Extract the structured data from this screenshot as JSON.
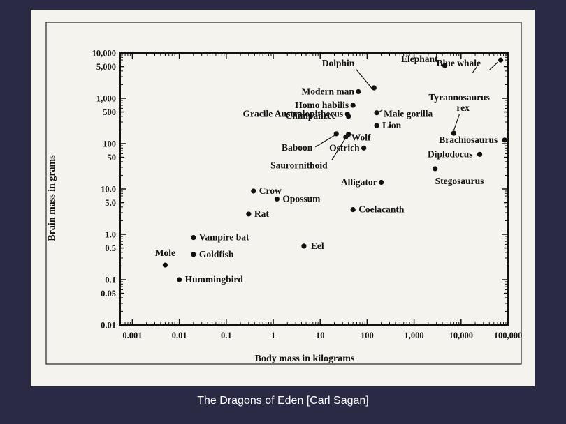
{
  "caption": "The Dragons of Eden [Carl Sagan]",
  "chart_data": {
    "type": "scatter",
    "title": "",
    "xlabel": "Body mass in kilograms",
    "ylabel": "Brain mass in grams",
    "xscale": "log",
    "yscale": "log",
    "xlim": [
      0.00055,
      100000
    ],
    "ylim": [
      0.01,
      10000
    ],
    "grid": false,
    "x_ticks": [
      "0.001",
      "0.01",
      "0.1",
      "1",
      "10",
      "100",
      "1,000",
      "10,000",
      "100,000"
    ],
    "y_ticks": [
      "10,000",
      "5,000",
      "1,000",
      "500",
      "100",
      "50",
      "10.0",
      "5.0",
      "1.0",
      "0.5",
      "0.1",
      "0.05",
      "0.01"
    ],
    "points": [
      {
        "label": "Elephant",
        "x": 4500,
        "y": 5300
      },
      {
        "label": "Blue whale",
        "x": 70000,
        "y": 7000
      },
      {
        "label": "Dolphin",
        "x": 140,
        "y": 1700
      },
      {
        "label": "Modern man",
        "x": 65,
        "y": 1400
      },
      {
        "label": "Homo habilis",
        "x": 50,
        "y": 700
      },
      {
        "label": "Male gorilla",
        "x": 160,
        "y": 480
      },
      {
        "label": "Gracile Australopithecus",
        "x": 38,
        "y": 450
      },
      {
        "label": "Tyrannosaurus rex",
        "x": 7000,
        "y": 170
      },
      {
        "label": "Lion",
        "x": 160,
        "y": 250
      },
      {
        "label": "Chimpanzee",
        "x": 40,
        "y": 400
      },
      {
        "label": "Baboon",
        "x": 22,
        "y": 165
      },
      {
        "label": "Wolf",
        "x": 35,
        "y": 140
      },
      {
        "label": "Saurornithoid",
        "x": 40,
        "y": 160
      },
      {
        "label": "Brachiosaurus",
        "x": 85000,
        "y": 120
      },
      {
        "label": "Ostrich",
        "x": 85,
        "y": 80
      },
      {
        "label": "Diplodocus",
        "x": 25000,
        "y": 58
      },
      {
        "label": "Stegosaurus",
        "x": 2800,
        "y": 28
      },
      {
        "label": "Alligator",
        "x": 200,
        "y": 14
      },
      {
        "label": "Crow",
        "x": 0.38,
        "y": 9
      },
      {
        "label": "Opossum",
        "x": 1.2,
        "y": 6
      },
      {
        "label": "Rat",
        "x": 0.3,
        "y": 2.8
      },
      {
        "label": "Coelacanth",
        "x": 50,
        "y": 3.5
      },
      {
        "label": "Vampire bat",
        "x": 0.02,
        "y": 0.85
      },
      {
        "label": "Goldfish",
        "x": 0.02,
        "y": 0.36
      },
      {
        "label": "Eel",
        "x": 4.5,
        "y": 0.55
      },
      {
        "label": "Mole",
        "x": 0.005,
        "y": 0.21
      },
      {
        "label": "Hummingbird",
        "x": 0.01,
        "y": 0.1
      }
    ]
  }
}
